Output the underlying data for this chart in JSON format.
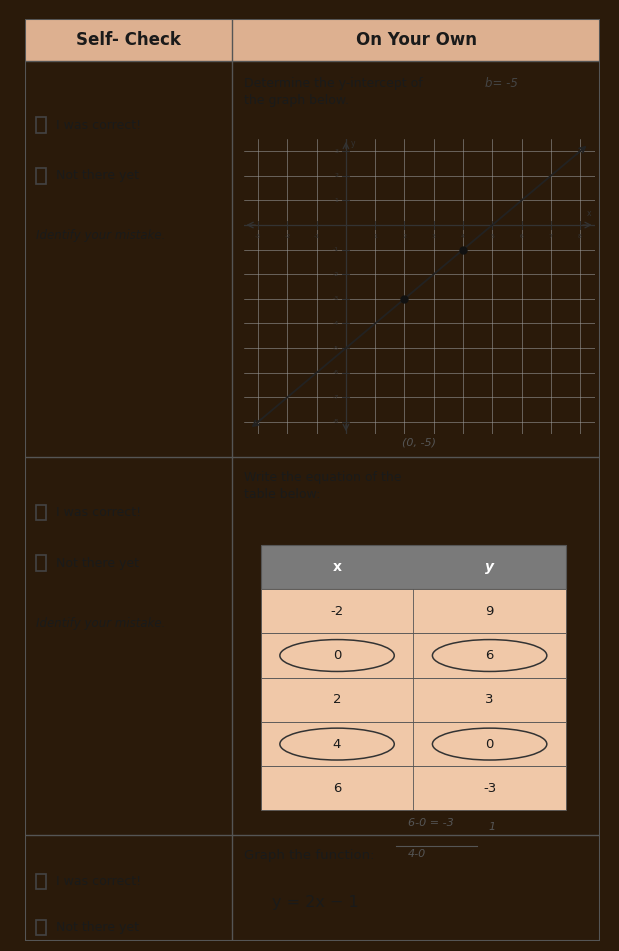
{
  "background_color": "#e8b898",
  "paper_color": "#f0c8a8",
  "header_left": "Self- Check",
  "header_right": "On Your Own",
  "row1_left_lines": [
    "I was correct!",
    "Not there yet",
    "Identify your mistake."
  ],
  "row1_right_title": "Determine the y-intercept of\nthe graph below.",
  "row1_annotation": "b= -5",
  "row1_answer_annotation": "(0, -5)",
  "graph_xlim": [
    -3,
    8
  ],
  "graph_ylim": [
    -8,
    3
  ],
  "dot_points": [
    [
      2,
      -3
    ],
    [
      4,
      -1
    ]
  ],
  "row2_left_lines": [
    "I was correct!",
    "Not there yet",
    "Identify your mistake."
  ],
  "row2_right_title": "Write the equation of the\ntable below:",
  "table_headers": [
    "x",
    "y"
  ],
  "table_data": [
    [
      -2,
      9
    ],
    [
      0,
      6
    ],
    [
      2,
      3
    ],
    [
      4,
      0
    ],
    [
      6,
      -3
    ]
  ],
  "table_circled_rows": [
    1,
    3
  ],
  "row3_left_lines": [
    "I was correct!",
    "Not there yet"
  ],
  "row3_right_title": "Graph the function:",
  "row3_equation": "y = 2x − 1",
  "text_color": "#1a1a1a",
  "line_color": "#222222",
  "table_header_bg": "#7a7a7a",
  "grid_color": "#999999"
}
